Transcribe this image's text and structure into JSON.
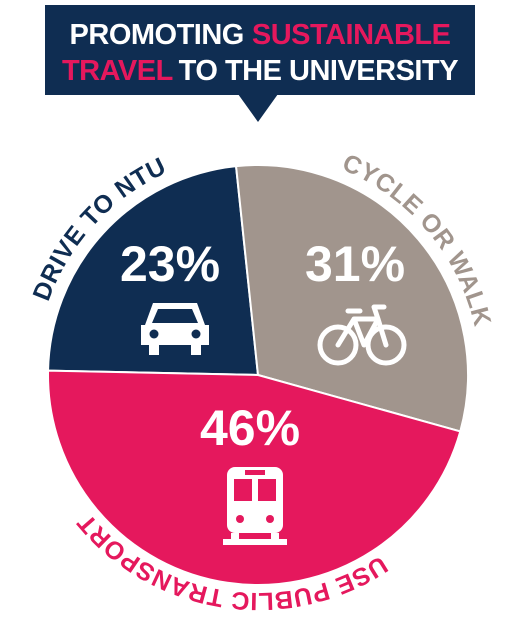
{
  "chart_data": {
    "type": "pie",
    "title": {
      "lines": [
        [
          {
            "text": "PROMOTING",
            "color": "#ffffff"
          },
          {
            "text": "SUSTAINABLE",
            "color": "#e5185d"
          }
        ],
        [
          {
            "text": "TRAVEL",
            "color": "#e5185d"
          },
          {
            "text": "TO THE UNIVERSITY",
            "color": "#ffffff"
          }
        ]
      ]
    },
    "categories": [
      "DRIVE TO NTU",
      "CYCLE OR WALK",
      "USE PUBLIC TRANSPORT"
    ],
    "values": [
      23,
      31,
      46
    ],
    "value_labels": [
      "23%",
      "31%",
      "46%"
    ],
    "colors": [
      "#0f2d52",
      "#a1958d",
      "#e5185d"
    ]
  }
}
